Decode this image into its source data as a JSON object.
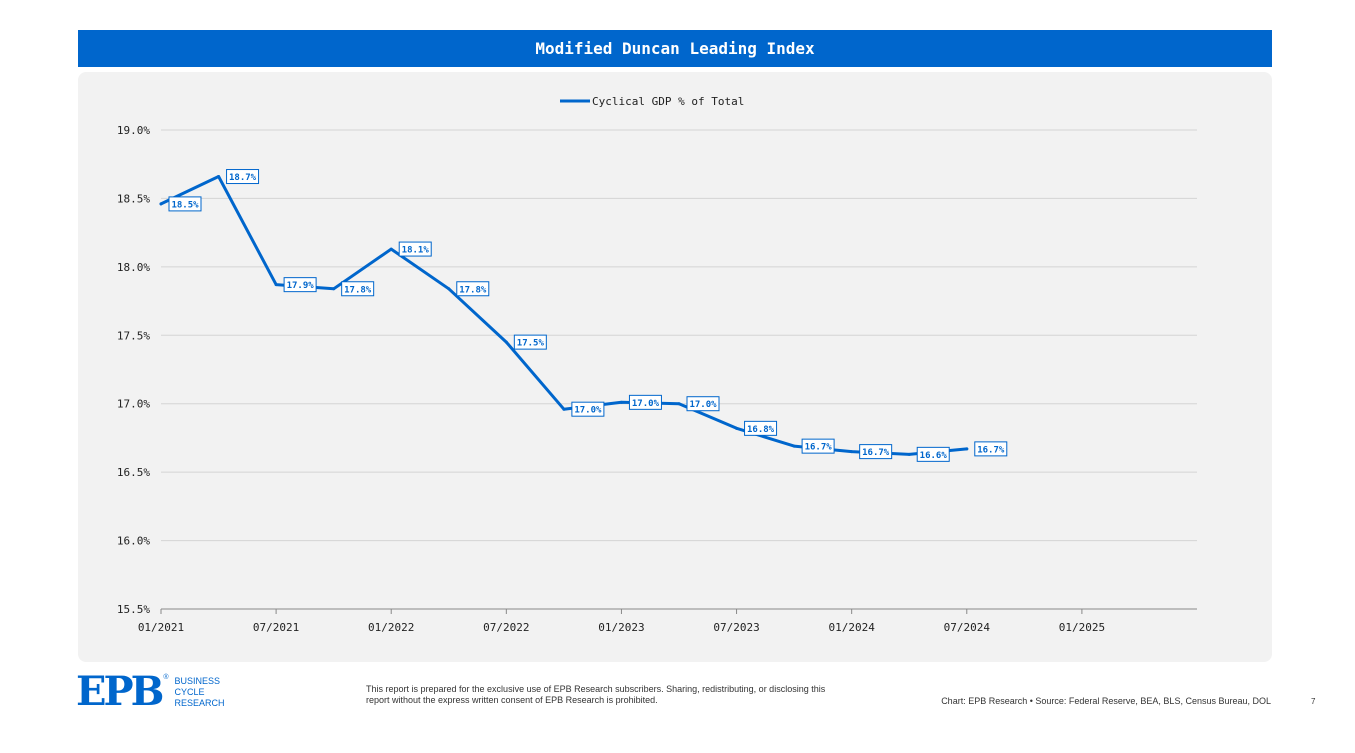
{
  "header": {
    "title": "Modified Duncan Leading Index"
  },
  "chart_data": {
    "type": "line",
    "title": "Modified Duncan Leading Index",
    "legend": {
      "label": "Cyclical GDP % of Total",
      "position": "top-center"
    },
    "ylim": [
      15.5,
      19.0
    ],
    "yticks": [
      15.5,
      16.0,
      16.5,
      17.0,
      17.5,
      18.0,
      18.5,
      19.0
    ],
    "ytick_labels": [
      "15.5%",
      "16.0%",
      "16.5%",
      "17.0%",
      "17.5%",
      "18.0%",
      "18.5%",
      "19.0%"
    ],
    "xlim": [
      "2021-01",
      "2025-07"
    ],
    "xticks": [
      "2021-01",
      "2021-07",
      "2022-01",
      "2022-07",
      "2023-01",
      "2023-07",
      "2024-01",
      "2024-07",
      "2025-01"
    ],
    "xtick_labels": [
      "01/2021",
      "07/2021",
      "01/2022",
      "07/2022",
      "01/2023",
      "07/2023",
      "01/2024",
      "07/2024",
      "01/2025"
    ],
    "grid": true,
    "series": [
      {
        "name": "Cyclical GDP % of Total",
        "color": "#0066cc",
        "points": [
          {
            "x": "2021-01",
            "y": 18.46,
            "label": "18.5%"
          },
          {
            "x": "2021-04",
            "y": 18.66,
            "label": "18.7%"
          },
          {
            "x": "2021-07",
            "y": 17.87,
            "label": "17.9%"
          },
          {
            "x": "2021-10",
            "y": 17.84,
            "label": "17.8%"
          },
          {
            "x": "2022-01",
            "y": 18.13,
            "label": "18.1%"
          },
          {
            "x": "2022-04",
            "y": 17.84,
            "label": "17.8%"
          },
          {
            "x": "2022-07",
            "y": 17.45,
            "label": "17.5%"
          },
          {
            "x": "2022-10",
            "y": 16.96,
            "label": "17.0%"
          },
          {
            "x": "2023-01",
            "y": 17.01,
            "label": "17.0%"
          },
          {
            "x": "2023-04",
            "y": 17.0,
            "label": "17.0%"
          },
          {
            "x": "2023-07",
            "y": 16.82,
            "label": "16.8%"
          },
          {
            "x": "2023-10",
            "y": 16.69,
            "label": "16.7%"
          },
          {
            "x": "2024-01",
            "y": 16.65,
            "label": "16.7%"
          },
          {
            "x": "2024-04",
            "y": 16.63,
            "label": "16.6%"
          },
          {
            "x": "2024-07",
            "y": 16.67,
            "label": "16.7%"
          }
        ]
      }
    ]
  },
  "footer": {
    "logo_text": "EPB",
    "logo_lines": [
      "BUSINESS",
      "CYCLE",
      "RESEARCH"
    ],
    "disclaimer": "This report is prepared for the exclusive use of EPB Research subscribers. Sharing, redistributing, or disclosing this report without the express written consent of EPB Research is prohibited.",
    "source": "Chart: EPB Research  •  Source: Federal Reserve, BEA, BLS, Census Bureau, DOL",
    "page_number": "7"
  }
}
